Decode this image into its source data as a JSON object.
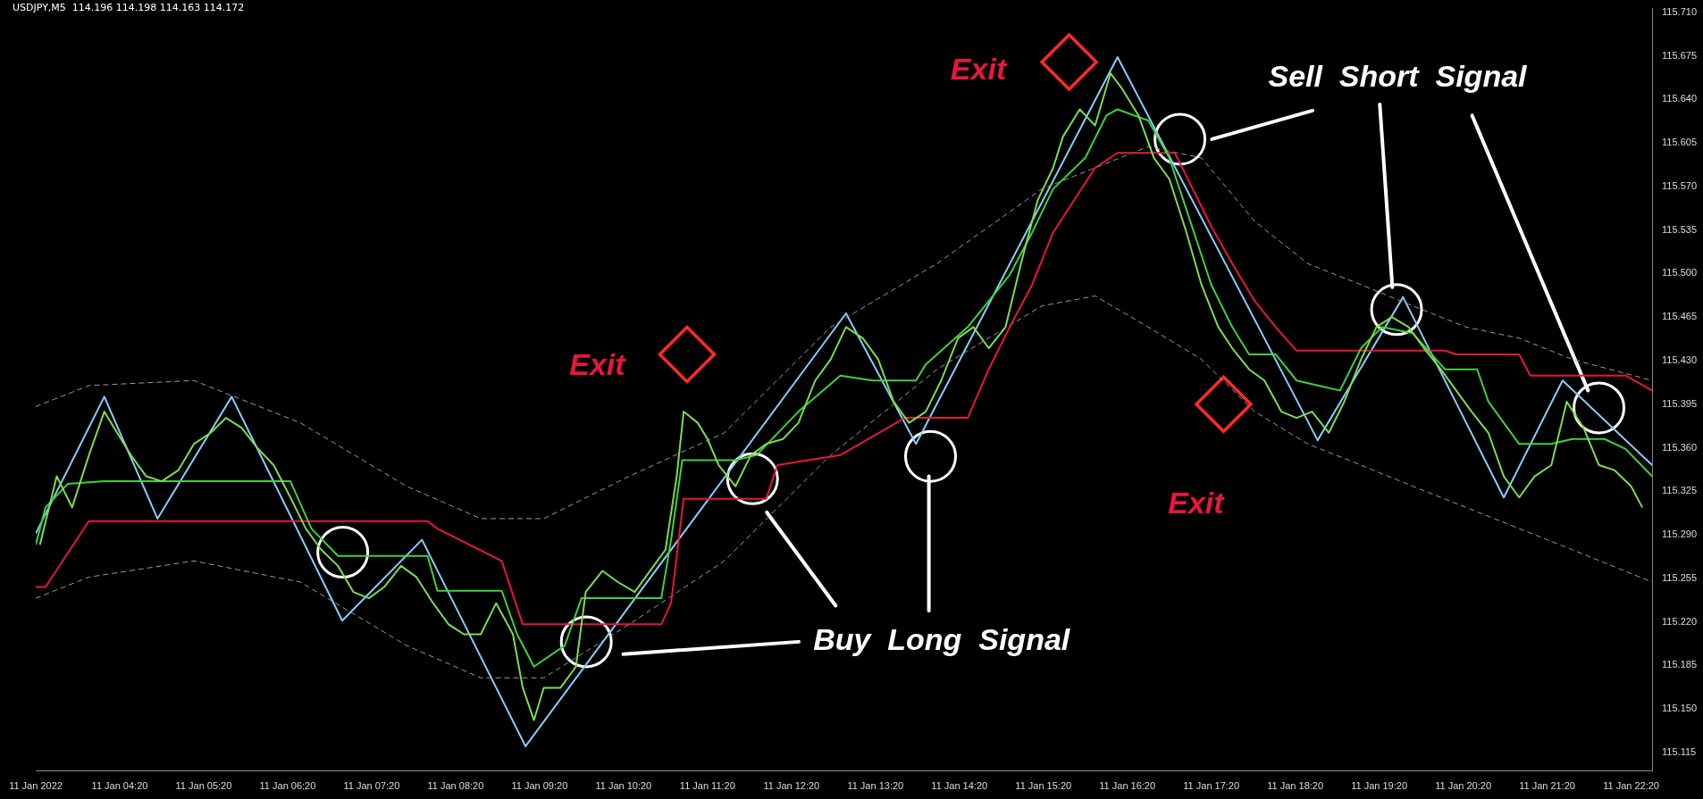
{
  "chart_data": {
    "type": "line",
    "annotations": [
      "USDJPY,M5  114.196 114.198 114.163 114.172",
      "Exit",
      "Exit",
      "Exit",
      "Sell  Short  Signal",
      "Buy  Long  Signal"
    ],
    "xlim": [
      "2022-01-11T03:20",
      "2022-01-11T22:35"
    ],
    "xticks": [
      {
        "value": "2022-01-11T03:20",
        "label": "11 Jan 2022"
      },
      {
        "value": "2022-01-11T04:20",
        "label": "11 Jan 04:20"
      },
      {
        "value": "2022-01-11T05:20",
        "label": "11 Jan 05:20"
      },
      {
        "value": "2022-01-11T06:20",
        "label": "11 Jan 06:20"
      },
      {
        "value": "2022-01-11T07:20",
        "label": "11 Jan 07:20"
      },
      {
        "value": "2022-01-11T08:20",
        "label": "11 Jan 08:20"
      },
      {
        "value": "2022-01-11T09:20",
        "label": "11 Jan 09:20"
      },
      {
        "value": "2022-01-11T10:20",
        "label": "11 Jan 10:20"
      },
      {
        "value": "2022-01-11T11:20",
        "label": "11 Jan 11:20"
      },
      {
        "value": "2022-01-11T12:20",
        "label": "11 Jan 12:20"
      },
      {
        "value": "2022-01-11T13:20",
        "label": "11 Jan 13:20"
      },
      {
        "value": "2022-01-11T14:20",
        "label": "11 Jan 14:20"
      },
      {
        "value": "2022-01-11T15:20",
        "label": "11 Jan 15:20"
      },
      {
        "value": "2022-01-11T16:20",
        "label": "11 Jan 16:20"
      },
      {
        "value": "2022-01-11T17:20",
        "label": "11 Jan 17:20"
      },
      {
        "value": "2022-01-11T18:20",
        "label": "11 Jan 18:20"
      },
      {
        "value": "2022-01-11T19:20",
        "label": "11 Jan 19:20"
      },
      {
        "value": "2022-01-11T20:20",
        "label": "11 Jan 20:20"
      },
      {
        "value": "2022-01-11T21:20",
        "label": "11 Jan 21:20"
      },
      {
        "value": "2022-01-11T22:20",
        "label": "11 Jan 22:20"
      }
    ],
    "ylim": [
      115.1,
      115.713
    ],
    "yticks": [
      115.115,
      {
        "value": 115.15,
        "label": "115.150"
      },
      115.185,
      {
        "value": 115.22,
        "label": "115.220"
      },
      115.255,
      {
        "value": 115.29,
        "label": "115.290"
      },
      115.325,
      {
        "value": 115.36,
        "label": "115.360"
      },
      115.395,
      {
        "value": 115.43,
        "label": "115.430"
      },
      115.465,
      {
        "value": 115.5,
        "label": "115.500"
      },
      115.535,
      {
        "value": 115.57,
        "label": "115.570"
      },
      115.605,
      {
        "value": 115.64,
        "label": "115.640"
      },
      115.675,
      {
        "value": 115.71,
        "label": "115.710"
      }
    ],
    "series": [
      {
        "type": "line",
        "color": "#7ddc4f",
        "x": [
          "2022-01-11T03:23",
          "2022-01-11T03:35",
          "2022-01-11T03:46",
          "2022-01-11T03:58",
          "2022-01-11T04:09",
          "2022-01-11T04:16",
          "2022-01-11T04:28",
          "2022-01-11T04:39",
          "2022-01-11T04:50",
          "2022-01-11T05:02",
          "2022-01-11T05:13",
          "2022-01-11T05:25",
          "2022-01-11T05:36",
          "2022-01-11T05:47",
          "2022-01-11T05:59",
          "2022-01-11T06:10",
          "2022-01-11T06:22",
          "2022-01-11T06:33",
          "2022-01-11T06:44",
          "2022-01-11T06:56",
          "2022-01-11T07:07",
          "2022-01-11T07:18",
          "2022-01-11T07:29",
          "2022-01-11T07:41",
          "2022-01-11T07:52",
          "2022-01-11T08:04",
          "2022-01-11T08:15",
          "2022-01-11T08:26",
          "2022-01-11T08:38",
          "2022-01-11T08:49",
          "2022-01-11T09:01",
          "2022-01-11T09:08",
          "2022-01-11T09:16",
          "2022-01-11T09:23",
          "2022-01-11T09:35",
          "2022-01-11T09:46",
          "2022-01-11T09:53",
          "2022-01-11T10:05",
          "2022-01-11T10:16",
          "2022-01-11T10:28",
          "2022-01-11T10:39",
          "2022-01-11T10:50",
          "2022-01-11T10:58",
          "2022-01-11T11:03",
          "2022-01-11T11:13",
          "2022-01-11T11:20",
          "2022-01-11T11:28",
          "2022-01-11T11:40",
          "2022-01-11T11:51",
          "2022-01-11T12:02",
          "2022-01-11T12:14",
          "2022-01-11T12:25",
          "2022-01-11T12:37",
          "2022-01-11T12:48",
          "2022-01-11T12:59",
          "2022-01-11T13:11",
          "2022-01-11T13:22",
          "2022-01-11T13:33",
          "2022-01-11T13:44",
          "2022-01-11T13:56",
          "2022-01-11T14:07",
          "2022-01-11T14:19",
          "2022-01-11T14:30",
          "2022-01-11T14:41",
          "2022-01-11T14:53",
          "2022-01-11T15:04",
          "2022-01-11T15:16",
          "2022-01-11T15:27",
          "2022-01-11T15:34",
          "2022-01-11T15:46",
          "2022-01-11T15:57",
          "2022-01-11T16:08",
          "2022-01-11T16:16",
          "2022-01-11T16:28",
          "2022-01-11T16:39",
          "2022-01-11T16:50",
          "2022-01-11T17:02",
          "2022-01-11T17:13",
          "2022-01-11T17:25",
          "2022-01-11T17:35",
          "2022-01-11T17:47",
          "2022-01-11T17:58",
          "2022-01-11T18:10",
          "2022-01-11T18:21",
          "2022-01-11T18:32",
          "2022-01-11T18:44",
          "2022-01-11T18:55",
          "2022-01-11T19:07",
          "2022-01-11T19:18",
          "2022-01-11T19:29",
          "2022-01-11T19:41",
          "2022-01-11T19:52",
          "2022-01-11T20:04",
          "2022-01-11T20:15",
          "2022-01-11T20:26",
          "2022-01-11T20:38",
          "2022-01-11T20:49",
          "2022-01-11T21:00",
          "2022-01-11T21:11",
          "2022-01-11T21:23",
          "2022-01-11T21:34",
          "2022-01-11T21:46",
          "2022-01-11T21:57",
          "2022-01-11T22:08",
          "2022-01-11T22:20",
          "2022-01-11T22:28"
        ],
        "values": [
          115.282,
          115.337,
          115.312,
          115.354,
          115.389,
          115.376,
          115.354,
          115.337,
          115.333,
          115.342,
          115.363,
          115.372,
          115.384,
          115.376,
          115.359,
          115.346,
          115.32,
          115.295,
          115.278,
          115.265,
          115.244,
          115.239,
          115.248,
          115.265,
          115.256,
          115.235,
          115.218,
          115.21,
          115.21,
          115.235,
          115.21,
          115.167,
          115.141,
          115.167,
          115.167,
          115.184,
          115.244,
          115.261,
          115.252,
          115.244,
          115.261,
          115.278,
          115.337,
          115.389,
          115.38,
          115.367,
          115.346,
          115.329,
          115.354,
          115.363,
          115.367,
          115.38,
          115.414,
          115.431,
          115.457,
          115.448,
          115.431,
          115.397,
          115.38,
          115.389,
          115.414,
          115.448,
          115.457,
          115.44,
          115.457,
          115.508,
          115.559,
          115.585,
          115.61,
          115.632,
          115.619,
          115.661,
          115.649,
          115.627,
          115.593,
          115.576,
          115.534,
          115.491,
          115.457,
          115.44,
          115.423,
          115.414,
          115.389,
          115.384,
          115.389,
          115.372,
          115.397,
          115.431,
          115.457,
          115.465,
          115.457,
          115.44,
          115.423,
          115.406,
          115.389,
          115.372,
          115.337,
          115.32,
          115.337,
          115.346,
          115.397,
          115.376,
          115.346,
          115.342,
          115.329,
          115.312
        ]
      },
      {
        "type": "line",
        "color": "#3ed13e",
        "x": [
          "2022-01-11T03:20",
          "2022-01-11T03:27",
          "2022-01-11T03:43",
          "2022-01-11T04:09",
          "2022-01-11T06:22",
          "2022-01-11T06:37",
          "2022-01-11T06:56",
          "2022-01-11T08:00",
          "2022-01-11T08:07",
          "2022-01-11T08:53",
          "2022-01-11T09:04",
          "2022-01-11T09:16",
          "2022-01-11T09:38",
          "2022-01-11T09:50",
          "2022-01-11T10:47",
          "2022-01-11T10:54",
          "2022-01-11T11:02",
          "2022-01-11T11:40",
          "2022-01-11T11:55",
          "2022-01-11T12:25",
          "2022-01-11T12:55",
          "2022-01-11T13:18",
          "2022-01-11T13:49",
          "2022-01-11T13:56",
          "2022-01-11T14:26",
          "2022-01-11T14:56",
          "2022-01-11T15:12",
          "2022-01-11T15:27",
          "2022-01-11T15:50",
          "2022-01-11T16:05",
          "2022-01-11T16:13",
          "2022-01-11T16:35",
          "2022-01-11T16:50",
          "2022-01-11T17:05",
          "2022-01-11T17:20",
          "2022-01-11T17:35",
          "2022-01-11T17:47",
          "2022-01-11T18:06",
          "2022-01-11T18:21",
          "2022-01-11T18:36",
          "2022-01-11T18:52",
          "2022-01-11T19:07",
          "2022-01-11T19:22",
          "2022-01-11T19:44",
          "2022-01-11T20:07",
          "2022-01-11T20:30",
          "2022-01-11T20:38",
          "2022-01-11T21:00",
          "2022-01-11T21:23",
          "2022-01-11T21:38",
          "2022-01-11T22:01",
          "2022-01-11T22:16",
          "2022-01-11T22:35"
        ],
        "values": [
          115.282,
          115.312,
          115.331,
          115.333,
          115.333,
          115.295,
          115.273,
          115.273,
          115.245,
          115.245,
          115.21,
          115.184,
          115.201,
          115.239,
          115.239,
          115.286,
          115.35,
          115.35,
          115.354,
          115.389,
          115.418,
          115.414,
          115.414,
          115.427,
          115.457,
          115.499,
          115.533,
          115.568,
          115.593,
          115.627,
          115.632,
          115.623,
          115.593,
          115.542,
          115.491,
          115.457,
          115.435,
          115.435,
          115.414,
          115.41,
          115.406,
          115.44,
          115.457,
          115.452,
          115.423,
          115.423,
          115.397,
          115.363,
          115.363,
          115.367,
          115.367,
          115.359,
          115.337
        ]
      },
      {
        "type": "line",
        "color": "#e8173c",
        "x": [
          "2022-01-11T03:20",
          "2022-01-11T03:27",
          "2022-01-11T03:58",
          "2022-01-11T08:00",
          "2022-01-11T08:07",
          "2022-01-11T08:53",
          "2022-01-11T09:08",
          "2022-01-11T10:47",
          "2022-01-11T10:54",
          "2022-01-11T11:03",
          "2022-01-11T12:02",
          "2022-01-11T12:10",
          "2022-01-11T12:55",
          "2022-01-11T13:41",
          "2022-01-11T14:26",
          "2022-01-11T14:41",
          "2022-01-11T14:56",
          "2022-01-11T15:12",
          "2022-01-11T15:27",
          "2022-01-11T15:42",
          "2022-01-11T15:57",
          "2022-01-11T16:13",
          "2022-01-11T16:54",
          "2022-01-11T17:05",
          "2022-01-11T17:20",
          "2022-01-11T17:35",
          "2022-01-11T17:51",
          "2022-01-11T18:06",
          "2022-01-11T18:21",
          "2022-01-11T20:07",
          "2022-01-11T20:15",
          "2022-01-11T21:00",
          "2022-01-11T21:08",
          "2022-01-11T22:16",
          "2022-01-11T22:35"
        ],
        "values": [
          115.248,
          115.248,
          115.301,
          115.301,
          115.295,
          115.269,
          115.218,
          115.218,
          115.235,
          115.319,
          115.319,
          115.346,
          115.354,
          115.384,
          115.384,
          115.423,
          115.457,
          115.491,
          115.533,
          115.559,
          115.585,
          115.597,
          115.597,
          115.572,
          115.538,
          115.508,
          115.478,
          115.457,
          115.438,
          115.438,
          115.435,
          115.435,
          115.418,
          115.418,
          115.406
        ]
      },
      {
        "type": "line",
        "color": "#9a9a9a",
        "line_style": "dashed",
        "x": [
          "2022-01-11T03:20",
          "2022-01-11T03:58",
          "2022-01-11T05:13",
          "2022-01-11T06:29",
          "2022-01-11T07:45",
          "2022-01-11T08:38",
          "2022-01-11T09:23",
          "2022-01-11T10:24",
          "2022-01-11T11:32",
          "2022-01-11T12:48",
          "2022-01-11T14:04",
          "2022-01-11T15:19",
          "2022-01-11T16:35",
          "2022-01-11T17:13",
          "2022-01-11T17:51",
          "2022-01-11T18:29",
          "2022-01-11T19:07",
          "2022-01-11T19:44",
          "2022-01-11T20:22",
          "2022-01-11T21:00",
          "2022-01-11T21:38",
          "2022-01-11T22:35"
        ],
        "values": [
          115.393,
          115.41,
          115.414,
          115.38,
          115.329,
          115.303,
          115.303,
          115.337,
          115.372,
          115.457,
          115.508,
          115.568,
          115.602,
          115.593,
          115.542,
          115.508,
          115.491,
          115.474,
          115.457,
          115.448,
          115.431,
          115.414
        ]
      },
      {
        "type": "line",
        "color": "#9a9a9a",
        "line_style": "dashed",
        "x": [
          "2022-01-11T03:20",
          "2022-01-11T03:58",
          "2022-01-11T05:13",
          "2022-01-11T06:29",
          "2022-01-11T07:45",
          "2022-01-11T08:38",
          "2022-01-11T09:23",
          "2022-01-11T10:24",
          "2022-01-11T11:32",
          "2022-01-11T12:48",
          "2022-01-11T14:04",
          "2022-01-11T15:19",
          "2022-01-11T15:57",
          "2022-01-11T16:35",
          "2022-01-11T17:13",
          "2022-01-11T17:51",
          "2022-01-11T18:29",
          "2022-01-11T19:07",
          "2022-01-11T19:44",
          "2022-01-11T20:22",
          "2022-01-11T21:00",
          "2022-01-11T21:38",
          "2022-01-11T22:35"
        ],
        "values": [
          115.239,
          115.256,
          115.269,
          115.252,
          115.201,
          115.175,
          115.175,
          115.218,
          115.269,
          115.354,
          115.423,
          115.474,
          115.482,
          115.457,
          115.431,
          115.389,
          115.363,
          115.346,
          115.329,
          115.312,
          115.295,
          115.278,
          115.252
        ]
      },
      {
        "type": "line",
        "color": "#87cefa",
        "x": [
          "2022-01-11T03:20",
          "2022-01-11T04:09",
          "2022-01-11T04:47",
          "2022-01-11T05:40",
          "2022-01-11T06:59",
          "2022-01-11T07:56",
          "2022-01-11T09:10",
          "2022-01-11T12:59",
          "2022-01-11T13:49",
          "2022-01-11T16:13",
          "2022-01-11T18:36",
          "2022-01-11T19:37",
          "2022-01-11T20:49",
          "2022-01-11T21:31",
          "2022-01-11T22:35"
        ],
        "values": [
          115.291,
          115.401,
          115.303,
          115.401,
          115.221,
          115.286,
          115.12,
          115.468,
          115.363,
          115.674,
          115.366,
          115.481,
          115.32,
          115.414,
          115.346
        ]
      }
    ]
  }
}
